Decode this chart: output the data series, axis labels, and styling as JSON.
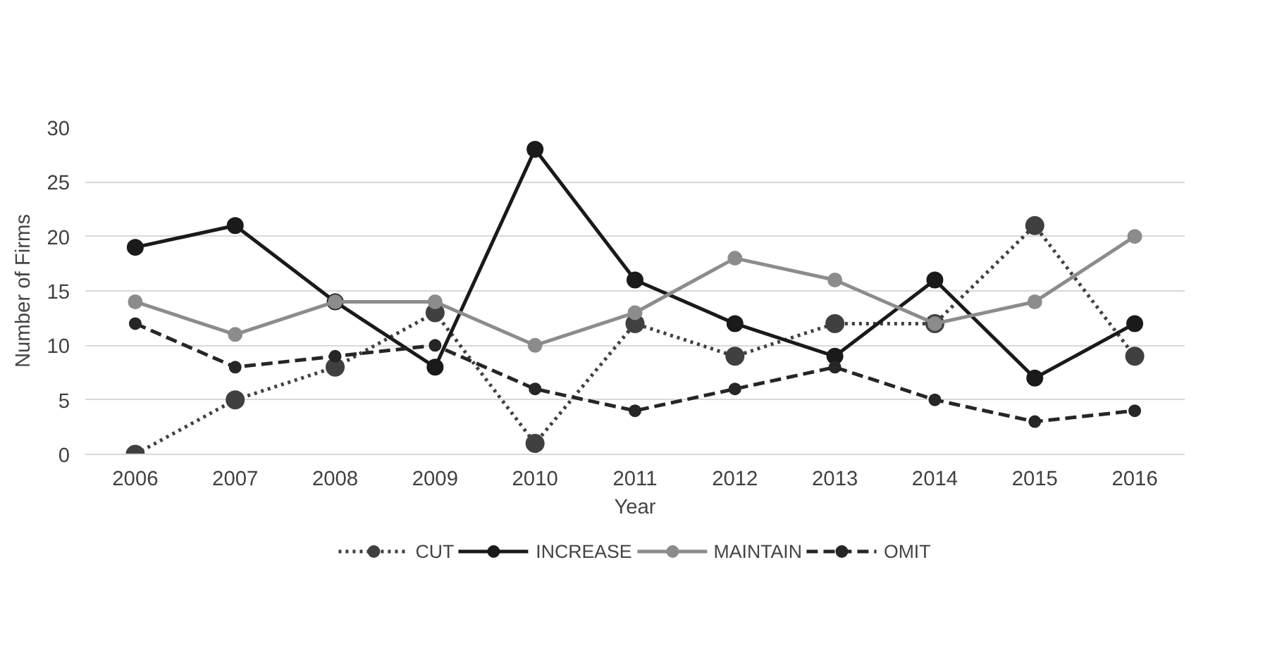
{
  "chart_data": {
    "type": "line",
    "xlabel": "Year",
    "ylabel": "Number of Firms",
    "categories": [
      "2006",
      "2007",
      "2008",
      "2009",
      "2010",
      "2011",
      "2012",
      "2013",
      "2014",
      "2015",
      "2016"
    ],
    "series": [
      {
        "name": "CUT",
        "color": "#404040",
        "line_style": "dotted",
        "values": [
          0,
          5,
          8,
          13,
          1,
          12,
          9,
          12,
          12,
          21,
          9
        ]
      },
      {
        "name": "INCREASE",
        "color": "#1a1a1a",
        "line_style": "solid",
        "values": [
          19,
          21,
          14,
          8,
          28,
          16,
          12,
          9,
          16,
          7,
          12
        ]
      },
      {
        "name": "MAINTAIN",
        "color": "#8c8c8c",
        "line_style": "solid",
        "values": [
          14,
          11,
          14,
          14,
          10,
          13,
          18,
          16,
          12,
          14,
          20
        ]
      },
      {
        "name": "OMIT",
        "color": "#262626",
        "line_style": "dashed",
        "values": [
          12,
          8,
          9,
          10,
          6,
          4,
          6,
          8,
          5,
          3,
          4
        ]
      }
    ],
    "ylim": [
      0,
      30
    ],
    "yticks": [
      0,
      5,
      10,
      15,
      20,
      25,
      30
    ],
    "grid": "y",
    "legend": "bottom",
    "marker": "circle"
  }
}
